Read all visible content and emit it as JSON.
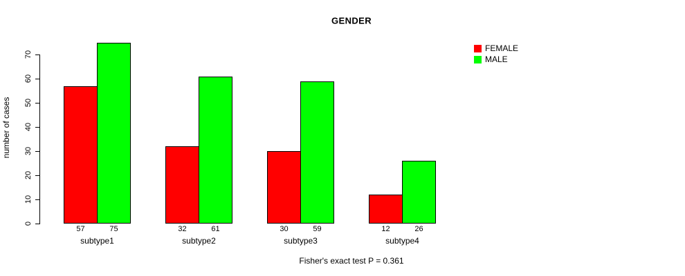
{
  "chart_data": {
    "type": "bar",
    "title": "GENDER",
    "xlabel": "",
    "ylabel": "number of cases",
    "categories": [
      "subtype1",
      "subtype2",
      "subtype3",
      "subtype4"
    ],
    "series": [
      {
        "name": "FEMALE",
        "color": "#ff0000",
        "values": [
          57,
          32,
          30,
          12
        ]
      },
      {
        "name": "MALE",
        "color": "#00ff00",
        "values": [
          75,
          61,
          59,
          26
        ]
      }
    ],
    "yticks": [
      0,
      10,
      20,
      30,
      40,
      50,
      60,
      70
    ],
    "ylim": [
      0,
      75
    ],
    "bar_value_labels": true,
    "grid": false,
    "legend_position": "top-right",
    "annotation": "Fisher's exact test P = 0.361"
  }
}
